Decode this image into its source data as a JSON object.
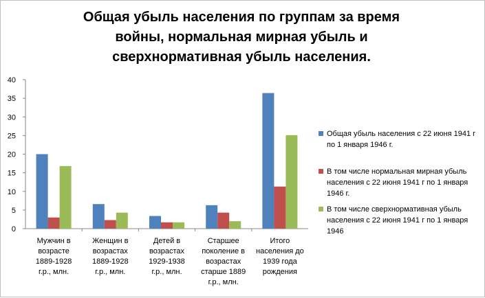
{
  "chart_data": {
    "type": "bar",
    "title": "Общая убыль населения по группам за время\nвойны, нормальная мирная убыль и\nсверхнормативная убыль населения.",
    "categories": [
      "Мужчин в\nвозрасте\n1889-1928\nг.р., млн.",
      "Женщин в\nвозрастах\n1889-1928\nг.р., млн.",
      "Детей в\nвозрастах\n1929-1938\nг.р., млн.",
      "Старшее\nпоколение в\nвозрастах\nстарше 1889\nг.р., млн.",
      "Итого\nнаселения до\n1939 года\nрождения"
    ],
    "series": [
      {
        "name": "Общая убыль населения с 22 июня 1941 г по 1 января 1946 г.",
        "color": "#4F81BD",
        "values": [
          20.0,
          6.6,
          3.4,
          6.3,
          36.4
        ]
      },
      {
        "name": "В том числе нормальная мирная убыль населения с 22 июня 1941 г по 1 января 1946 г.",
        "color": "#C0504D",
        "values": [
          3.0,
          2.3,
          1.7,
          4.3,
          11.3
        ]
      },
      {
        "name": "В том числе сверхнормативная убыль населения с 22 июня 1941 г по 1 января 1946",
        "color": "#9BBB59",
        "values": [
          16.8,
          4.3,
          1.7,
          2.0,
          25.1
        ]
      }
    ],
    "ylim": [
      0,
      40
    ],
    "yticks": [
      0,
      5,
      10,
      15,
      20,
      25,
      30,
      35,
      40
    ],
    "grid": false,
    "legend_position": "right"
  }
}
